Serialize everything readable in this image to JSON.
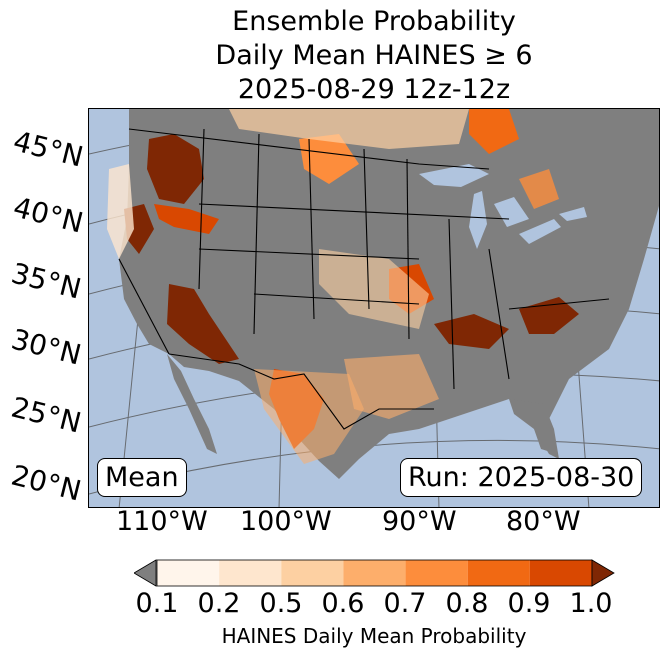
{
  "title": {
    "line1": "Ensemble Probability",
    "line2": "Daily Mean HAINES ≥ 6",
    "line3": "2025-08-29 12z-12z"
  },
  "map": {
    "lat_labels": [
      "45°N",
      "40°N",
      "35°N",
      "30°N",
      "25°N",
      "20°N"
    ],
    "lon_labels": [
      "110°W",
      "100°W",
      "90°W",
      "80°W"
    ],
    "mean_label": "Mean",
    "run_label": "Run: 2025-08-30",
    "colors": {
      "ocean": "#b0c4de",
      "land_low": "#7f7f7f",
      "lake": "#b0c4de"
    }
  },
  "colorbar": {
    "ticks": [
      "0.1",
      "0.2",
      "0.5",
      "0.6",
      "0.7",
      "0.8",
      "0.9",
      "1.0"
    ],
    "label": "HAINES Daily Mean Probability",
    "under_color": "#7f7f7f",
    "over_color": "#7f2704",
    "colors": [
      "#fff5eb",
      "#fee6ce",
      "#fdd0a2",
      "#fdae6b",
      "#fd8d3c",
      "#f16913",
      "#d94801"
    ]
  }
}
